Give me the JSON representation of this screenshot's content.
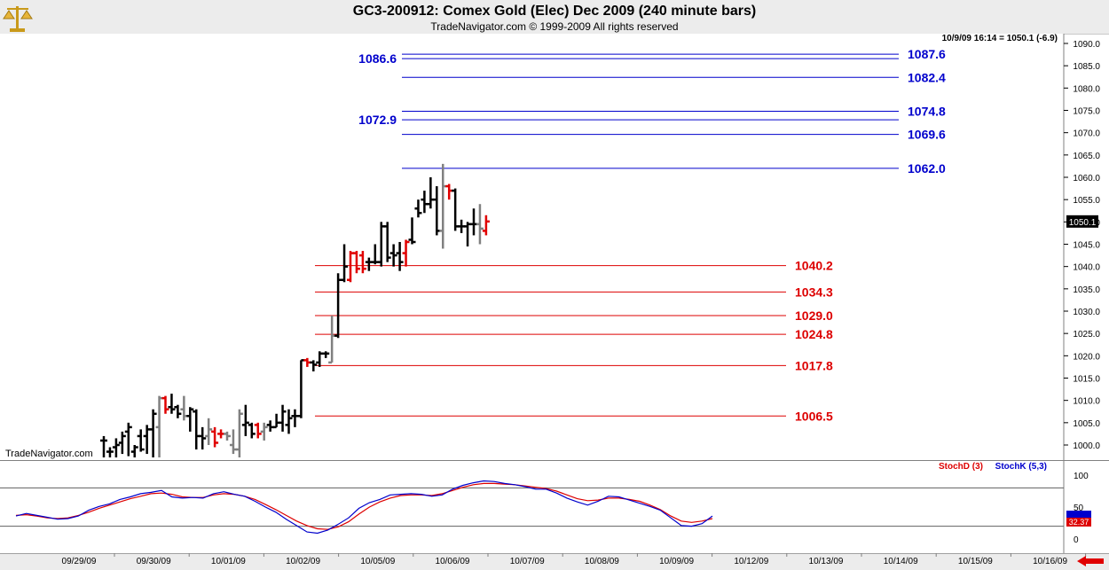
{
  "window": {
    "title": "GC3-200912:  Comex Gold (Elec) Dec 2009  (240 minute bars)",
    "subtitle": "TradeNavigator.com © 1999-2009 All rights reserved",
    "watermark": "TradeNavigator.com",
    "logo_icon": "scales-icon",
    "scroll_icon": "left-arrow-icon"
  },
  "colors": {
    "blue_levels": "#0000cc",
    "red_levels": "#dd0000",
    "up_bar": "#000000",
    "down_bar": "#e00000",
    "neutral_bar": "#808080",
    "stoch_d": "#dd0000",
    "stoch_k": "#0000cc",
    "last_price_bg": "#000000",
    "stoch_d_tag_bg": "#dd0000",
    "stoch_k_tag_bg": "#0000cc"
  },
  "chart_data": [
    {
      "type": "ohlc",
      "title": "GC3-200912:  Comex Gold (Elec) Dec 2009  (240 minute bars)",
      "last_price_info": "10/9/09 16:14 = 1050.1 (-6.9)",
      "last_price_tag": "1050.1",
      "ylim": [
        997,
        1093
      ],
      "y_ticks": [
        "1000.0",
        "1005.0",
        "1010.0",
        "1015.0",
        "1020.0",
        "1025.0",
        "1030.0",
        "1035.0",
        "1040.0",
        "1045.0",
        "1050.0",
        "1055.0",
        "1060.0",
        "1065.0",
        "1070.0",
        "1075.0",
        "1080.0",
        "1085.0",
        "1090.0"
      ],
      "x_ticks": [
        "09/29/09",
        "09/30/09",
        "10/01/09",
        "10/02/09",
        "10/05/09",
        "10/06/09",
        "10/07/09",
        "10/08/09",
        "10/09/09",
        "10/12/09",
        "10/13/09",
        "10/14/09",
        "10/15/09",
        "10/16/09"
      ],
      "blue_levels": [
        {
          "value": 1087.6,
          "label": "1087.6"
        },
        {
          "value": 1086.6,
          "label": "1086.6"
        },
        {
          "value": 1082.4,
          "label": "1082.4"
        },
        {
          "value": 1074.8,
          "label": "1074.8"
        },
        {
          "value": 1072.9,
          "label": "1072.9"
        },
        {
          "value": 1069.6,
          "label": "1069.6"
        },
        {
          "value": 1062.0,
          "label": "1062.0"
        }
      ],
      "red_levels": [
        {
          "value": 1040.2,
          "label": "1040.2"
        },
        {
          "value": 1034.3,
          "label": "1034.3"
        },
        {
          "value": 1029.0,
          "label": "1029.0"
        },
        {
          "value": 1024.8,
          "label": "1024.8"
        },
        {
          "value": 1017.8,
          "label": "1017.8"
        },
        {
          "value": 1006.5,
          "label": "1006.5"
        }
      ],
      "bars": [
        {
          "o": 1001.0,
          "h": 1002.0,
          "l": 997.0,
          "c": 1001.0,
          "k": "u"
        },
        {
          "o": 998.5,
          "h": 999.5,
          "l": 997.0,
          "c": 998.5,
          "k": "u"
        },
        {
          "o": 999.5,
          "h": 1001.5,
          "l": 997.0,
          "c": 1000.0,
          "k": "u"
        },
        {
          "o": 1000.5,
          "h": 1003.0,
          "l": 998.0,
          "c": 1002.0,
          "k": "u"
        },
        {
          "o": 1003.0,
          "h": 1005.0,
          "l": 997.5,
          "c": 1004.0,
          "k": "u"
        },
        {
          "o": 998.5,
          "h": 1000.0,
          "l": 997.0,
          "c": 999.5,
          "k": "u"
        },
        {
          "o": 1002.0,
          "h": 1003.5,
          "l": 998.5,
          "c": 999.0,
          "k": "u"
        },
        {
          "o": 1002.0,
          "h": 1004.5,
          "l": 998.0,
          "c": 1003.5,
          "k": "u"
        },
        {
          "o": 1003.5,
          "h": 1008.0,
          "l": 997.0,
          "c": 1007.0,
          "k": "u"
        },
        {
          "o": 1004.0,
          "h": 1011.0,
          "l": 997.0,
          "c": 1010.5,
          "k": "n"
        },
        {
          "o": 1010.5,
          "h": 1011.0,
          "l": 1007.0,
          "c": 1008.0,
          "k": "d"
        },
        {
          "o": 1008.5,
          "h": 1011.5,
          "l": 1007.0,
          "c": 1008.0,
          "k": "u"
        },
        {
          "o": 1008.5,
          "h": 1009.0,
          "l": 1006.0,
          "c": 1007.0,
          "k": "u"
        },
        {
          "o": 1008.0,
          "h": 1011.0,
          "l": 1005.5,
          "c": 1006.5,
          "k": "n"
        },
        {
          "o": 1006.5,
          "h": 1008.5,
          "l": 1003.0,
          "c": 1008.0,
          "k": "u"
        },
        {
          "o": 1007.5,
          "h": 1008.0,
          "l": 999.0,
          "c": 1002.0,
          "k": "u"
        },
        {
          "o": 1002.0,
          "h": 1004.0,
          "l": 999.0,
          "c": 1001.5,
          "k": "u"
        },
        {
          "o": 1002.0,
          "h": 1006.0,
          "l": 1000.0,
          "c": 1003.5,
          "k": "n"
        },
        {
          "o": 1003.0,
          "h": 1004.0,
          "l": 999.5,
          "c": 1000.5,
          "k": "d"
        },
        {
          "o": 1002.5,
          "h": 1003.5,
          "l": 1001.5,
          "c": 1002.5,
          "k": "d"
        },
        {
          "o": 1002.5,
          "h": 1003.0,
          "l": 1001.0,
          "c": 1002.0,
          "k": "n"
        },
        {
          "o": 1000.0,
          "h": 1003.5,
          "l": 998.0,
          "c": 999.0,
          "k": "n"
        },
        {
          "o": 999.0,
          "h": 1008.0,
          "l": 997.0,
          "c": 1007.0,
          "k": "n"
        },
        {
          "o": 1004.5,
          "h": 1009.0,
          "l": 1002.0,
          "c": 1005.0,
          "k": "u"
        },
        {
          "o": 1004.5,
          "h": 1005.0,
          "l": 1001.5,
          "c": 1002.5,
          "k": "u"
        },
        {
          "o": 1004.5,
          "h": 1005.0,
          "l": 1001.5,
          "c": 1002.5,
          "k": "d"
        },
        {
          "o": 1003.0,
          "h": 1005.0,
          "l": 1001.0,
          "c": 1004.0,
          "k": "n"
        },
        {
          "o": 1004.5,
          "h": 1005.5,
          "l": 1003.0,
          "c": 1004.0,
          "k": "u"
        },
        {
          "o": 1004.0,
          "h": 1007.0,
          "l": 1004.0,
          "c": 1005.0,
          "k": "u"
        },
        {
          "o": 1005.0,
          "h": 1009.0,
          "l": 1003.0,
          "c": 1007.5,
          "k": "u"
        },
        {
          "o": 1004.5,
          "h": 1008.0,
          "l": 1002.5,
          "c": 1006.0,
          "k": "u"
        },
        {
          "o": 1006.5,
          "h": 1008.0,
          "l": 1004.0,
          "c": 1006.5,
          "k": "u"
        },
        {
          "o": 1006.5,
          "h": 1019.0,
          "l": 1006.0,
          "c": 1019.0,
          "k": "u"
        },
        {
          "o": 1019.0,
          "h": 1019.5,
          "l": 1017.5,
          "c": 1018.5,
          "k": "d"
        },
        {
          "o": 1018.5,
          "h": 1019.0,
          "l": 1016.5,
          "c": 1018.0,
          "k": "u"
        },
        {
          "o": 1018.5,
          "h": 1021.0,
          "l": 1017.5,
          "c": 1020.5,
          "k": "u"
        },
        {
          "o": 1020.5,
          "h": 1021.0,
          "l": 1019.5,
          "c": 1020.5,
          "k": "u"
        },
        {
          "o": 1018.5,
          "h": 1029.0,
          "l": 1018.5,
          "c": 1024.5,
          "k": "n"
        },
        {
          "o": 1024.5,
          "h": 1038.5,
          "l": 1024.0,
          "c": 1037.0,
          "k": "u"
        },
        {
          "o": 1037.0,
          "h": 1045.0,
          "l": 1036.5,
          "c": 1040.0,
          "k": "u"
        },
        {
          "o": 1037.0,
          "h": 1043.5,
          "l": 1036.5,
          "c": 1043.0,
          "k": "d"
        },
        {
          "o": 1043.0,
          "h": 1043.5,
          "l": 1038.5,
          "c": 1039.5,
          "k": "d"
        },
        {
          "o": 1042.5,
          "h": 1043.5,
          "l": 1038.5,
          "c": 1039.5,
          "k": "d"
        },
        {
          "o": 1041.0,
          "h": 1042.0,
          "l": 1039.0,
          "c": 1041.0,
          "k": "u"
        },
        {
          "o": 1041.0,
          "h": 1045.0,
          "l": 1040.5,
          "c": 1041.0,
          "k": "u"
        },
        {
          "o": 1041.0,
          "h": 1050.0,
          "l": 1040.0,
          "c": 1049.0,
          "k": "u"
        },
        {
          "o": 1049.0,
          "h": 1050.0,
          "l": 1041.0,
          "c": 1042.0,
          "k": "u"
        },
        {
          "o": 1043.0,
          "h": 1045.0,
          "l": 1040.0,
          "c": 1042.5,
          "k": "u"
        },
        {
          "o": 1043.0,
          "h": 1045.5,
          "l": 1039.0,
          "c": 1041.0,
          "k": "u"
        },
        {
          "o": 1043.0,
          "h": 1046.0,
          "l": 1040.0,
          "c": 1045.5,
          "k": "d"
        },
        {
          "o": 1046.0,
          "h": 1051.0,
          "l": 1045.0,
          "c": 1045.5,
          "k": "u"
        },
        {
          "o": 1053.0,
          "h": 1055.0,
          "l": 1051.0,
          "c": 1052.0,
          "k": "u"
        },
        {
          "o": 1055.0,
          "h": 1057.0,
          "l": 1052.0,
          "c": 1054.0,
          "k": "u"
        },
        {
          "o": 1054.0,
          "h": 1060.0,
          "l": 1053.0,
          "c": 1055.0,
          "k": "u"
        },
        {
          "o": 1055.0,
          "h": 1058.0,
          "l": 1047.0,
          "c": 1048.0,
          "k": "u"
        },
        {
          "o": 1048.0,
          "h": 1063.0,
          "l": 1044.0,
          "c": 1058.0,
          "k": "n"
        },
        {
          "o": 1058.0,
          "h": 1058.5,
          "l": 1055.0,
          "c": 1057.0,
          "k": "d"
        },
        {
          "o": 1057.0,
          "h": 1057.5,
          "l": 1048.0,
          "c": 1049.0,
          "k": "u"
        },
        {
          "o": 1049.0,
          "h": 1050.5,
          "l": 1047.5,
          "c": 1049.0,
          "k": "u"
        },
        {
          "o": 1049.0,
          "h": 1050.0,
          "l": 1044.5,
          "c": 1049.5,
          "k": "u"
        },
        {
          "o": 1049.5,
          "h": 1053.0,
          "l": 1047.0,
          "c": 1049.5,
          "k": "u"
        },
        {
          "o": 1049.5,
          "h": 1054.0,
          "l": 1045.0,
          "c": 1048.5,
          "k": "n"
        },
        {
          "o": 1048.0,
          "h": 1051.5,
          "l": 1047.0,
          "c": 1050.1,
          "k": "d"
        }
      ]
    },
    {
      "type": "line",
      "title": "",
      "ylim": [
        0,
        100
      ],
      "y_ticks": [
        "100",
        "50",
        "0"
      ],
      "levels": [
        20,
        80
      ],
      "series": [
        {
          "name": "StochD (3)",
          "tag": "32.37",
          "values": [
            37,
            38,
            36,
            33,
            32,
            33,
            37,
            42,
            48,
            53,
            58,
            63,
            67,
            71,
            72,
            70,
            66,
            65,
            65,
            69,
            71,
            70,
            67,
            62,
            54,
            46,
            37,
            28,
            21,
            16,
            15,
            19,
            27,
            39,
            50,
            58,
            64,
            68,
            69,
            69,
            68,
            71,
            76,
            81,
            85,
            87,
            87,
            86,
            85,
            83,
            81,
            79,
            75,
            69,
            63,
            60,
            61,
            64,
            64,
            62,
            59,
            53,
            46,
            36,
            28,
            26,
            28,
            32
          ]
        },
        {
          "name": "StochK (5,3)",
          "tag": "",
          "values": [
            36,
            40,
            37,
            34,
            31,
            32,
            36,
            45,
            51,
            55,
            62,
            66,
            71,
            73,
            76,
            66,
            64,
            65,
            64,
            71,
            74,
            70,
            67,
            59,
            50,
            42,
            31,
            21,
            11,
            9,
            14,
            23,
            33,
            48,
            57,
            62,
            69,
            70,
            71,
            70,
            67,
            69,
            78,
            84,
            88,
            91,
            90,
            87,
            85,
            82,
            78,
            78,
            72,
            64,
            58,
            53,
            59,
            67,
            66,
            61,
            56,
            51,
            45,
            33,
            21,
            20,
            24,
            36
          ]
        }
      ]
    }
  ]
}
